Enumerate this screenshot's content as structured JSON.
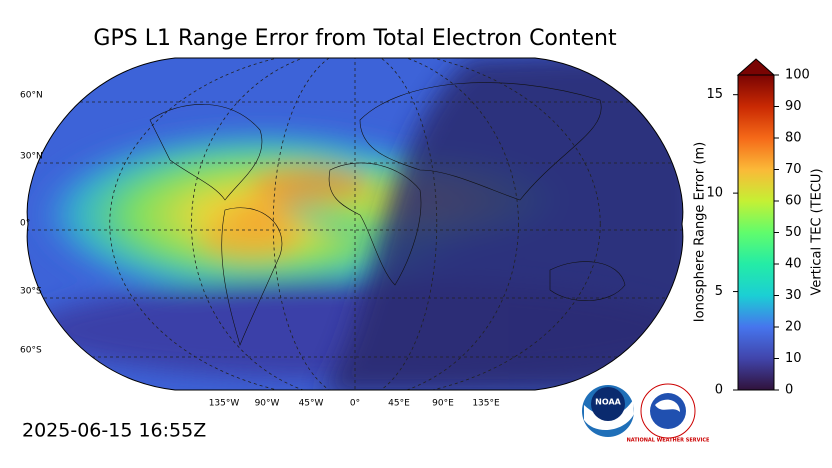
{
  "title": "GPS L1 Range Error from Total Electron Content",
  "timestamp": "2025-06-15 16:55Z",
  "map": {
    "lat_labels": [
      "60°N",
      "30°N",
      "0°",
      "30°S",
      "60°S"
    ],
    "lon_labels": [
      "135°W",
      "90°W",
      "45°W",
      "0°",
      "45°E",
      "90°E",
      "135°E"
    ]
  },
  "colorbar": {
    "left_label": "Ionosphere Range Error (m)",
    "left_lim": [
      0,
      16
    ],
    "left_ticks": [
      0,
      5,
      10,
      15
    ],
    "right_label": "Vertical TEC (TECU)",
    "right_lim": [
      0,
      100
    ],
    "right_ticks": [
      0,
      10,
      20,
      30,
      40,
      50,
      60,
      70,
      80,
      90,
      100
    ]
  },
  "logos": {
    "noaa": "NOAA",
    "nws": "NATIONAL WEATHER SERVICE"
  }
}
